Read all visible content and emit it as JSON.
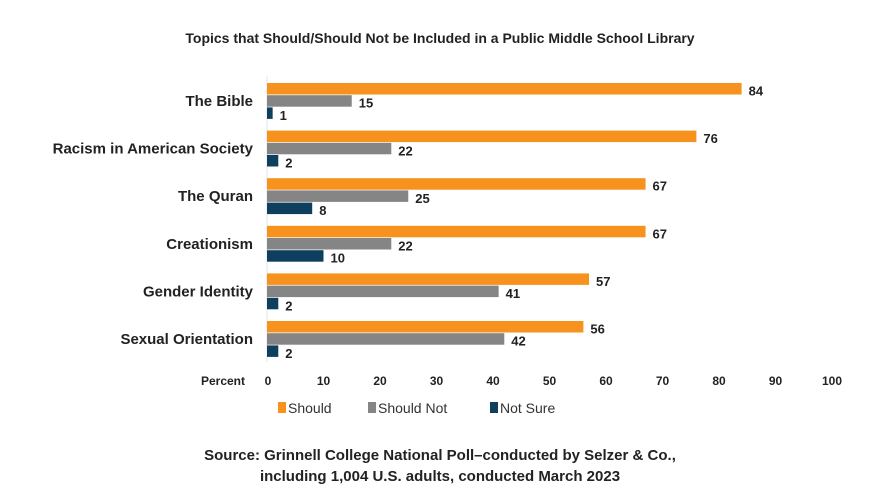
{
  "chart_data": {
    "type": "bar",
    "orientation": "horizontal",
    "title": "Topics that Should/Should Not be Included in a Public Middle School Library",
    "xlabel": "Percent",
    "xlim": [
      0,
      100
    ],
    "xticks": [
      0,
      10,
      20,
      30,
      40,
      50,
      60,
      70,
      80,
      90,
      100
    ],
    "grid": false,
    "legend_position": "bottom",
    "categories": [
      "The Bible",
      "Racism in American Society",
      "The Quran",
      "Creationism",
      "Gender Identity",
      "Sexual Orientation"
    ],
    "series": [
      {
        "name": "Should",
        "color": "#F7921E",
        "values": [
          84,
          76,
          67,
          67,
          57,
          56
        ]
      },
      {
        "name": "Should Not",
        "color": "#858585",
        "values": [
          15,
          22,
          25,
          22,
          41,
          42
        ]
      },
      {
        "name": "Not Sure",
        "color": "#0E3F5E",
        "values": [
          1,
          2,
          8,
          10,
          2,
          2
        ]
      }
    ],
    "source_lines": [
      "Source:  Grinnell College National Poll–conducted by Selzer & Co.,",
      "including 1,004 U.S. adults, conducted March 2023"
    ]
  }
}
